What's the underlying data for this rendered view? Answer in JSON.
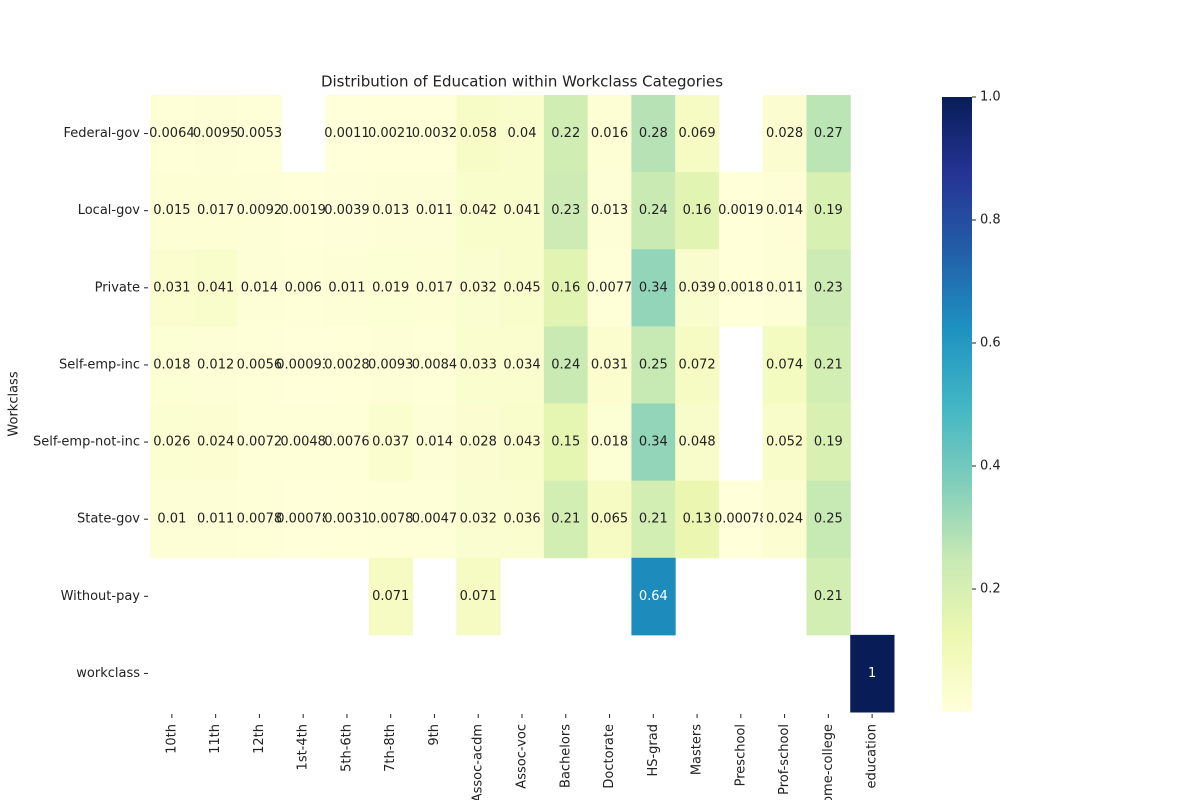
{
  "chart_data": {
    "type": "heatmap",
    "title": "Distribution of Education within Workclass Categories",
    "ylabel": "Workclass",
    "colormap": "YlGnBu",
    "clim": [
      0,
      1
    ],
    "cticks": [
      0.2,
      0.4,
      0.6,
      0.8,
      {
        "value": 1,
        "label": "1.0"
      }
    ],
    "x": [
      "10th",
      "11th",
      "12th",
      "1st-4th",
      "5th-6th",
      "7th-8th",
      "9th",
      "Assoc-acdm",
      "Assoc-voc",
      "Bachelors",
      "Doctorate",
      "HS-grad",
      "Masters",
      "Preschool",
      "Prof-school",
      "Some-college",
      "education"
    ],
    "y": [
      "Federal-gov",
      "Local-gov",
      "Private",
      "Self-emp-inc",
      "Self-emp-not-inc",
      "State-gov",
      "Without-pay",
      "workclass"
    ],
    "values": [
      [
        0.0064,
        0.0095,
        0.0053,
        null,
        0.0011,
        0.0021,
        0.0032,
        0.058,
        0.04,
        0.22,
        0.016,
        0.28,
        0.069,
        null,
        0.028,
        0.27,
        null
      ],
      [
        0.015,
        0.017,
        0.0092,
        0.0019,
        0.0039,
        0.013,
        0.011,
        0.042,
        0.041,
        0.23,
        0.013,
        0.24,
        0.16,
        0.0019,
        0.014,
        0.19,
        null
      ],
      [
        0.031,
        0.041,
        0.014,
        0.006,
        0.011,
        0.019,
        0.017,
        0.032,
        0.045,
        0.16,
        0.0077,
        0.34,
        0.039,
        0.0018,
        0.011,
        0.23,
        null
      ],
      [
        0.018,
        0.012,
        0.0056,
        0.00093,
        0.0028,
        0.0093,
        0.0084,
        0.033,
        0.034,
        0.24,
        0.031,
        0.25,
        0.072,
        null,
        0.074,
        0.21,
        null
      ],
      [
        0.026,
        0.024,
        0.0072,
        0.0048,
        0.0076,
        0.037,
        0.014,
        0.028,
        0.043,
        0.15,
        0.018,
        0.34,
        0.048,
        null,
        0.052,
        0.19,
        null
      ],
      [
        0.01,
        0.011,
        0.0078,
        0.00078,
        0.0031,
        0.0078,
        0.0047,
        0.032,
        0.036,
        0.21,
        0.065,
        0.21,
        0.13,
        0.00078,
        0.024,
        0.25,
        null
      ],
      [
        null,
        null,
        null,
        null,
        null,
        0.071,
        null,
        0.071,
        null,
        null,
        null,
        0.64,
        null,
        null,
        null,
        0.21,
        null
      ],
      [
        null,
        null,
        null,
        null,
        null,
        null,
        null,
        null,
        null,
        null,
        null,
        null,
        null,
        null,
        null,
        null,
        1
      ]
    ]
  }
}
